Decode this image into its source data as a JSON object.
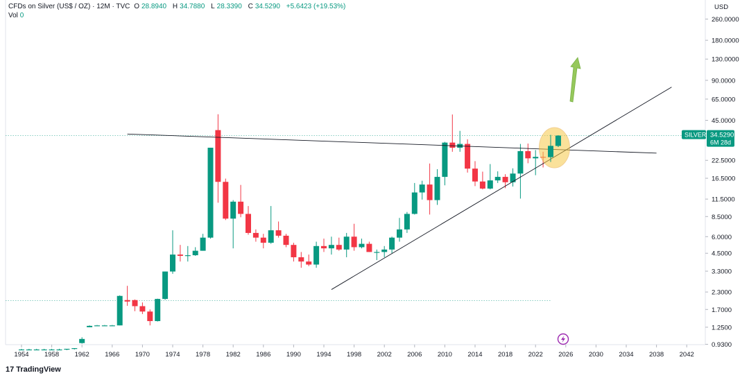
{
  "header": {
    "symbol": "CFDs on Silver (US$ / OZ) · 12M · TVC",
    "open_label": "O",
    "open": "28.8940",
    "high_label": "H",
    "high": "34.7880",
    "low_label": "L",
    "low": "28.3390",
    "close_label": "C",
    "close": "34.5290",
    "change": "+5.6423 (+19.53%)",
    "vol_label": "Vol",
    "vol_value": "0"
  },
  "currency": "USD",
  "price_tag": {
    "symbol": "SILVER",
    "price": "34.5290",
    "countdown": "6M 28d"
  },
  "brand": {
    "logo": "17",
    "name": "TradingView"
  },
  "colors": {
    "up": "#089981",
    "down": "#f23645",
    "arrow": "#8bc34a",
    "highlight": "#f7c948"
  },
  "chart_data": {
    "type": "candlestick",
    "y_scale": "log",
    "y_ticks": [
      "260.0000",
      "180.0000",
      "130.0000",
      "90.0000",
      "65.0000",
      "45.0000",
      "22.5000",
      "16.5000",
      "11.5000",
      "8.5000",
      "6.0000",
      "4.5000",
      "3.3000",
      "2.3000",
      "1.7000",
      "1.2500",
      "0.9300"
    ],
    "x_ticks": [
      "1954",
      "1958",
      "1962",
      "1966",
      "1970",
      "1974",
      "1978",
      "1982",
      "1986",
      "1990",
      "1994",
      "1998",
      "2002",
      "2006",
      "2010",
      "2014",
      "2018",
      "2022",
      "2026",
      "2030",
      "2034",
      "2038",
      "2042"
    ],
    "candles": [
      {
        "year": 1954,
        "o": 0.85,
        "h": 0.86,
        "l": 0.84,
        "c": 0.85
      },
      {
        "year": 1955,
        "o": 0.85,
        "h": 0.86,
        "l": 0.84,
        "c": 0.85
      },
      {
        "year": 1956,
        "o": 0.85,
        "h": 0.86,
        "l": 0.84,
        "c": 0.85
      },
      {
        "year": 1957,
        "o": 0.85,
        "h": 0.86,
        "l": 0.84,
        "c": 0.85
      },
      {
        "year": 1958,
        "o": 0.85,
        "h": 0.86,
        "l": 0.84,
        "c": 0.85
      },
      {
        "year": 1959,
        "o": 0.85,
        "h": 0.86,
        "l": 0.84,
        "c": 0.85
      },
      {
        "year": 1960,
        "o": 0.85,
        "h": 0.86,
        "l": 0.84,
        "c": 0.86
      },
      {
        "year": 1961,
        "o": 0.86,
        "h": 0.87,
        "l": 0.85,
        "c": 0.87
      },
      {
        "year": 1962,
        "o": 0.95,
        "h": 1.05,
        "l": 0.94,
        "c": 1.02
      },
      {
        "year": 1963,
        "o": 1.25,
        "h": 1.29,
        "l": 1.25,
        "c": 1.28
      },
      {
        "year": 1964,
        "o": 1.29,
        "h": 1.3,
        "l": 1.29,
        "c": 1.29
      },
      {
        "year": 1965,
        "o": 1.29,
        "h": 1.3,
        "l": 1.29,
        "c": 1.29
      },
      {
        "year": 1966,
        "o": 1.29,
        "h": 1.3,
        "l": 1.29,
        "c": 1.29
      },
      {
        "year": 1967,
        "o": 1.29,
        "h": 2.17,
        "l": 1.29,
        "c": 2.15
      },
      {
        "year": 1968,
        "o": 2.0,
        "h": 2.56,
        "l": 1.81,
        "c": 1.95
      },
      {
        "year": 1969,
        "o": 2.0,
        "h": 2.02,
        "l": 1.65,
        "c": 1.8
      },
      {
        "year": 1970,
        "o": 1.8,
        "h": 1.92,
        "l": 1.57,
        "c": 1.64
      },
      {
        "year": 1971,
        "o": 1.64,
        "h": 1.7,
        "l": 1.29,
        "c": 1.39
      },
      {
        "year": 1972,
        "o": 1.39,
        "h": 2.05,
        "l": 1.38,
        "c": 2.04
      },
      {
        "year": 1973,
        "o": 2.04,
        "h": 3.28,
        "l": 2.01,
        "c": 3.28
      },
      {
        "year": 1974,
        "o": 3.28,
        "h": 6.7,
        "l": 3.15,
        "c": 4.4
      },
      {
        "year": 1975,
        "o": 4.4,
        "h": 5.2,
        "l": 3.9,
        "c": 4.3
      },
      {
        "year": 1976,
        "o": 4.3,
        "h": 5.1,
        "l": 3.9,
        "c": 4.35
      },
      {
        "year": 1977,
        "o": 4.35,
        "h": 5.0,
        "l": 4.3,
        "c": 4.7
      },
      {
        "year": 1978,
        "o": 4.7,
        "h": 6.3,
        "l": 4.7,
        "c": 5.9
      },
      {
        "year": 1979,
        "o": 5.9,
        "h": 28.0,
        "l": 5.8,
        "c": 28.0
      },
      {
        "year": 1980,
        "o": 38.0,
        "h": 50.0,
        "l": 10.8,
        "c": 15.5
      },
      {
        "year": 1981,
        "o": 15.5,
        "h": 16.4,
        "l": 8.0,
        "c": 8.2
      },
      {
        "year": 1982,
        "o": 8.2,
        "h": 11.3,
        "l": 4.9,
        "c": 11.0
      },
      {
        "year": 1983,
        "o": 11.0,
        "h": 14.7,
        "l": 8.4,
        "c": 8.9
      },
      {
        "year": 1984,
        "o": 8.9,
        "h": 10.2,
        "l": 6.2,
        "c": 6.4
      },
      {
        "year": 1985,
        "o": 6.4,
        "h": 6.8,
        "l": 5.5,
        "c": 5.9
      },
      {
        "year": 1986,
        "o": 5.9,
        "h": 6.3,
        "l": 4.9,
        "c": 5.4
      },
      {
        "year": 1987,
        "o": 5.4,
        "h": 10.2,
        "l": 5.3,
        "c": 6.7
      },
      {
        "year": 1988,
        "o": 6.7,
        "h": 7.8,
        "l": 5.9,
        "c": 6.1
      },
      {
        "year": 1989,
        "o": 6.1,
        "h": 6.3,
        "l": 5.0,
        "c": 5.2
      },
      {
        "year": 1990,
        "o": 5.2,
        "h": 5.4,
        "l": 3.9,
        "c": 4.2
      },
      {
        "year": 1991,
        "o": 4.2,
        "h": 4.6,
        "l": 3.5,
        "c": 3.9
      },
      {
        "year": 1992,
        "o": 3.9,
        "h": 4.4,
        "l": 3.6,
        "c": 3.7
      },
      {
        "year": 1993,
        "o": 3.7,
        "h": 5.5,
        "l": 3.5,
        "c": 5.1
      },
      {
        "year": 1994,
        "o": 5.1,
        "h": 5.8,
        "l": 4.6,
        "c": 4.9
      },
      {
        "year": 1995,
        "o": 4.9,
        "h": 6.0,
        "l": 4.4,
        "c": 5.2
      },
      {
        "year": 1996,
        "o": 5.2,
        "h": 5.9,
        "l": 4.7,
        "c": 4.8
      },
      {
        "year": 1997,
        "o": 4.8,
        "h": 6.4,
        "l": 4.2,
        "c": 6.0
      },
      {
        "year": 1998,
        "o": 6.0,
        "h": 7.5,
        "l": 4.7,
        "c": 5.0
      },
      {
        "year": 1999,
        "o": 5.0,
        "h": 5.8,
        "l": 4.9,
        "c": 5.3
      },
      {
        "year": 2000,
        "o": 5.3,
        "h": 5.5,
        "l": 4.6,
        "c": 4.6
      },
      {
        "year": 2001,
        "o": 4.6,
        "h": 4.8,
        "l": 4.0,
        "c": 4.6
      },
      {
        "year": 2002,
        "o": 4.6,
        "h": 5.1,
        "l": 4.2,
        "c": 4.8
      },
      {
        "year": 2003,
        "o": 4.8,
        "h": 6.0,
        "l": 4.5,
        "c": 5.9
      },
      {
        "year": 2004,
        "o": 5.9,
        "h": 8.3,
        "l": 5.5,
        "c": 6.8
      },
      {
        "year": 2005,
        "o": 6.8,
        "h": 9.2,
        "l": 6.4,
        "c": 8.9
      },
      {
        "year": 2006,
        "o": 8.9,
        "h": 15.2,
        "l": 8.8,
        "c": 12.9
      },
      {
        "year": 2007,
        "o": 12.9,
        "h": 15.8,
        "l": 11.4,
        "c": 14.8
      },
      {
        "year": 2008,
        "o": 14.8,
        "h": 21.3,
        "l": 8.8,
        "c": 11.3
      },
      {
        "year": 2009,
        "o": 11.3,
        "h": 19.3,
        "l": 10.4,
        "c": 16.9
      },
      {
        "year": 2010,
        "o": 16.9,
        "h": 31.0,
        "l": 14.6,
        "c": 30.6
      },
      {
        "year": 2011,
        "o": 30.6,
        "h": 49.8,
        "l": 26.1,
        "c": 28.0
      },
      {
        "year": 2012,
        "o": 28.0,
        "h": 37.5,
        "l": 26.1,
        "c": 29.9
      },
      {
        "year": 2013,
        "o": 29.9,
        "h": 32.4,
        "l": 18.2,
        "c": 19.5
      },
      {
        "year": 2014,
        "o": 19.5,
        "h": 22.2,
        "l": 14.4,
        "c": 15.6
      },
      {
        "year": 2015,
        "o": 15.6,
        "h": 18.5,
        "l": 13.6,
        "c": 13.8
      },
      {
        "year": 2016,
        "o": 13.8,
        "h": 21.1,
        "l": 13.6,
        "c": 15.9
      },
      {
        "year": 2017,
        "o": 15.9,
        "h": 18.6,
        "l": 15.2,
        "c": 16.9
      },
      {
        "year": 2018,
        "o": 16.9,
        "h": 17.7,
        "l": 13.9,
        "c": 15.4
      },
      {
        "year": 2019,
        "o": 15.4,
        "h": 19.6,
        "l": 14.3,
        "c": 17.9
      },
      {
        "year": 2020,
        "o": 17.9,
        "h": 29.9,
        "l": 11.6,
        "c": 26.4
      },
      {
        "year": 2021,
        "o": 26.4,
        "h": 30.1,
        "l": 21.4,
        "c": 23.3
      },
      {
        "year": 2022,
        "o": 23.3,
        "h": 26.9,
        "l": 17.4,
        "c": 23.9
      },
      {
        "year": 2023,
        "o": 23.9,
        "h": 26.1,
        "l": 19.9,
        "c": 23.8
      },
      {
        "year": 2024,
        "o": 23.8,
        "h": 35.0,
        "l": 21.9,
        "c": 28.9
      },
      {
        "year": 2025,
        "o": 28.89,
        "h": 34.79,
        "l": 28.34,
        "c": 34.53
      }
    ],
    "trendlines": [
      {
        "from": {
          "year": 1968,
          "price": 35.5
        },
        "to": {
          "year": 2038,
          "price": 25.5
        },
        "color": "#131722"
      },
      {
        "from": {
          "year": 1995,
          "price": 2.4
        },
        "to": {
          "year": 2040,
          "price": 80.0
        },
        "color": "#131722"
      }
    ],
    "reference_lines": [
      {
        "price": 34.529,
        "style": "dotted",
        "color": "#089981"
      },
      {
        "price": 1.98,
        "style": "dotted",
        "color": "#089981"
      }
    ]
  }
}
